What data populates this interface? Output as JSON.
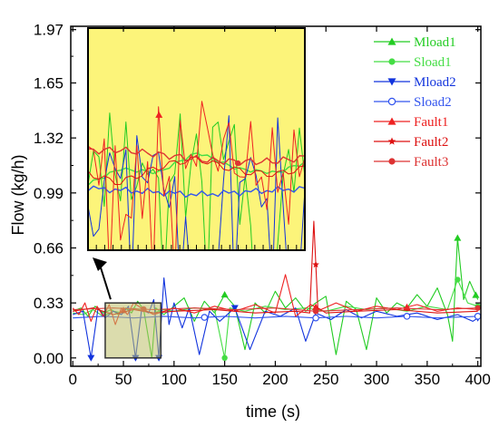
{
  "chart_data": {
    "type": "line",
    "xlabel": "time (s)",
    "ylabel": "Flow (kg/h)",
    "xlim": [
      -2,
      403
    ],
    "ylim": [
      -0.05,
      1.99
    ],
    "x_ticks": [
      0,
      50,
      100,
      150,
      200,
      250,
      300,
      350,
      400
    ],
    "y_ticks": [
      0.0,
      0.33,
      0.66,
      0.99,
      1.32,
      1.65,
      1.97
    ],
    "y_tick_labels": [
      "0.00",
      "0.33",
      "0.66",
      "0.99",
      "1.32",
      "1.65",
      "1.97"
    ],
    "grid": false,
    "legend_position": "top-right",
    "zoom_box": {
      "x_range": [
        32,
        87
      ],
      "y_range": [
        0.0,
        0.33
      ]
    },
    "inset": {
      "x_range": [
        32,
        87
      ],
      "y_range": [
        0.16,
        0.48
      ],
      "background": "#fcf47a"
    },
    "series": [
      {
        "name": "Mload1",
        "color": "#22cc22",
        "marker": "triangle-up",
        "points": [
          [
            0,
            0.28
          ],
          [
            8,
            0.3
          ],
          [
            15,
            0.25
          ],
          [
            22,
            0.31
          ],
          [
            30,
            0.27
          ],
          [
            38,
            0.29
          ],
          [
            45,
            0.26
          ],
          [
            52,
            0.3
          ],
          [
            58,
            0.27
          ],
          [
            64,
            0.34
          ],
          [
            70,
            0.29
          ],
          [
            78,
            0.0
          ],
          [
            82,
            0.3
          ],
          [
            90,
            0.26
          ],
          [
            100,
            0.31
          ],
          [
            110,
            0.36
          ],
          [
            120,
            0.22
          ],
          [
            130,
            0.34
          ],
          [
            140,
            0.27
          ],
          [
            150,
            0.38
          ],
          [
            160,
            0.31
          ],
          [
            170,
            0.05
          ],
          [
            180,
            0.33
          ],
          [
            190,
            0.27
          ],
          [
            200,
            0.4
          ],
          [
            210,
            0.3
          ],
          [
            220,
            0.36
          ],
          [
            230,
            0.28
          ],
          [
            240,
            0.33
          ],
          [
            250,
            0.37
          ],
          [
            260,
            0.02
          ],
          [
            270,
            0.34
          ],
          [
            280,
            0.29
          ],
          [
            290,
            0.05
          ],
          [
            300,
            0.36
          ],
          [
            310,
            0.27
          ],
          [
            320,
            0.33
          ],
          [
            330,
            0.3
          ],
          [
            340,
            0.38
          ],
          [
            350,
            0.31
          ],
          [
            360,
            0.42
          ],
          [
            370,
            0.26
          ],
          [
            375,
            0.1
          ],
          [
            380,
            0.72
          ],
          [
            386,
            0.35
          ],
          [
            392,
            0.46
          ],
          [
            400,
            0.35
          ]
        ],
        "marker_x": [
          150,
          330,
          380,
          398
        ]
      },
      {
        "name": "Sload1",
        "color": "#44dd44",
        "marker": "circle",
        "points": [
          [
            0,
            0.27
          ],
          [
            10,
            0.26
          ],
          [
            20,
            0.29
          ],
          [
            30,
            0.25
          ],
          [
            40,
            0.28
          ],
          [
            50,
            0.27
          ],
          [
            60,
            0.3
          ],
          [
            70,
            0.28
          ],
          [
            80,
            0.27
          ],
          [
            90,
            0.29
          ],
          [
            100,
            0.28
          ],
          [
            120,
            0.3
          ],
          [
            140,
            0.29
          ],
          [
            150,
            0.0
          ],
          [
            155,
            0.3
          ],
          [
            170,
            0.28
          ],
          [
            190,
            0.31
          ],
          [
            210,
            0.29
          ],
          [
            230,
            0.3
          ],
          [
            250,
            0.28
          ],
          [
            270,
            0.31
          ],
          [
            290,
            0.29
          ],
          [
            310,
            0.3
          ],
          [
            330,
            0.28
          ],
          [
            350,
            0.31
          ],
          [
            370,
            0.29
          ],
          [
            380,
            0.47
          ],
          [
            390,
            0.33
          ],
          [
            400,
            0.31
          ]
        ],
        "marker_x": [
          150,
          380,
          400
        ]
      },
      {
        "name": "Mload2",
        "color": "#1133dd",
        "marker": "triangle-down",
        "points": [
          [
            0,
            0.26
          ],
          [
            10,
            0.28
          ],
          [
            18,
            0.0
          ],
          [
            25,
            0.3
          ],
          [
            32,
            0.24
          ],
          [
            40,
            0.28
          ],
          [
            48,
            0.26
          ],
          [
            55,
            0.31
          ],
          [
            62,
            0.0
          ],
          [
            68,
            0.29
          ],
          [
            75,
            0.27
          ],
          [
            80,
            0.35
          ],
          [
            85,
            0.0
          ],
          [
            90,
            0.48
          ],
          [
            95,
            0.2
          ],
          [
            100,
            0.33
          ],
          [
            108,
            0.18
          ],
          [
            115,
            0.3
          ],
          [
            125,
            0.02
          ],
          [
            135,
            0.28
          ],
          [
            145,
            0.22
          ],
          [
            160,
            0.3
          ],
          [
            175,
            0.05
          ],
          [
            190,
            0.28
          ],
          [
            205,
            0.25
          ],
          [
            220,
            0.3
          ],
          [
            230,
            0.1
          ],
          [
            240,
            0.27
          ],
          [
            255,
            0.23
          ],
          [
            270,
            0.29
          ],
          [
            285,
            0.24
          ],
          [
            300,
            0.28
          ],
          [
            320,
            0.25
          ],
          [
            340,
            0.27
          ],
          [
            360,
            0.23
          ],
          [
            380,
            0.26
          ],
          [
            395,
            0.22
          ],
          [
            400,
            0.24
          ]
        ],
        "marker_x": [
          18,
          62,
          85,
          160,
          400
        ]
      },
      {
        "name": "Sload2",
        "color": "#3355ee",
        "marker": "circle-open",
        "points": [
          [
            0,
            0.24
          ],
          [
            30,
            0.25
          ],
          [
            60,
            0.24
          ],
          [
            90,
            0.25
          ],
          [
            120,
            0.24
          ],
          [
            150,
            0.25
          ],
          [
            180,
            0.24
          ],
          [
            210,
            0.25
          ],
          [
            240,
            0.24
          ],
          [
            270,
            0.25
          ],
          [
            300,
            0.24
          ],
          [
            330,
            0.25
          ],
          [
            360,
            0.24
          ],
          [
            400,
            0.25
          ]
        ],
        "marker_x": [
          130,
          240,
          330,
          400
        ]
      },
      {
        "name": "Fault1",
        "color": "#ee2222",
        "marker": "triangle-up",
        "points": [
          [
            0,
            0.3
          ],
          [
            6,
            0.26
          ],
          [
            12,
            0.33
          ],
          [
            18,
            0.22
          ],
          [
            24,
            0.31
          ],
          [
            30,
            0.25
          ],
          [
            36,
            0.32
          ],
          [
            42,
            0.2
          ],
          [
            48,
            0.3
          ],
          [
            54,
            0.26
          ],
          [
            60,
            0.33
          ],
          [
            70,
            0.29
          ],
          [
            80,
            0.26
          ],
          [
            100,
            0.3
          ],
          [
            120,
            0.27
          ],
          [
            140,
            0.31
          ],
          [
            160,
            0.28
          ],
          [
            180,
            0.32
          ],
          [
            200,
            0.27
          ],
          [
            210,
            0.5
          ],
          [
            220,
            0.25
          ],
          [
            235,
            0.32
          ],
          [
            245,
            0.29
          ],
          [
            260,
            0.33
          ],
          [
            280,
            0.28
          ],
          [
            300,
            0.31
          ],
          [
            320,
            0.29
          ],
          [
            340,
            0.32
          ],
          [
            360,
            0.28
          ],
          [
            380,
            0.3
          ],
          [
            400,
            0.29
          ]
        ],
        "marker_x": [
          50,
          240,
          330
        ]
      },
      {
        "name": "Fault2",
        "color": "#dd1111",
        "marker": "star",
        "points": [
          [
            0,
            0.28
          ],
          [
            20,
            0.3
          ],
          [
            40,
            0.26
          ],
          [
            60,
            0.29
          ],
          [
            80,
            0.27
          ],
          [
            100,
            0.28
          ],
          [
            140,
            0.29
          ],
          [
            180,
            0.27
          ],
          [
            220,
            0.28
          ],
          [
            234,
            0.27
          ],
          [
            238,
            0.82
          ],
          [
            242,
            0.3
          ],
          [
            250,
            0.27
          ],
          [
            280,
            0.28
          ],
          [
            320,
            0.29
          ],
          [
            360,
            0.27
          ],
          [
            400,
            0.28
          ]
        ],
        "marker_x": [
          240
        ]
      },
      {
        "name": "Fault3",
        "color": "#dd3333",
        "marker": "circle",
        "points": [
          [
            0,
            0.29
          ],
          [
            40,
            0.3
          ],
          [
            80,
            0.29
          ],
          [
            120,
            0.3
          ],
          [
            160,
            0.29
          ],
          [
            200,
            0.3
          ],
          [
            240,
            0.28
          ],
          [
            280,
            0.29
          ],
          [
            320,
            0.3
          ],
          [
            360,
            0.29
          ],
          [
            400,
            0.3
          ]
        ],
        "marker_x": [
          70,
          240,
          400
        ]
      }
    ]
  }
}
